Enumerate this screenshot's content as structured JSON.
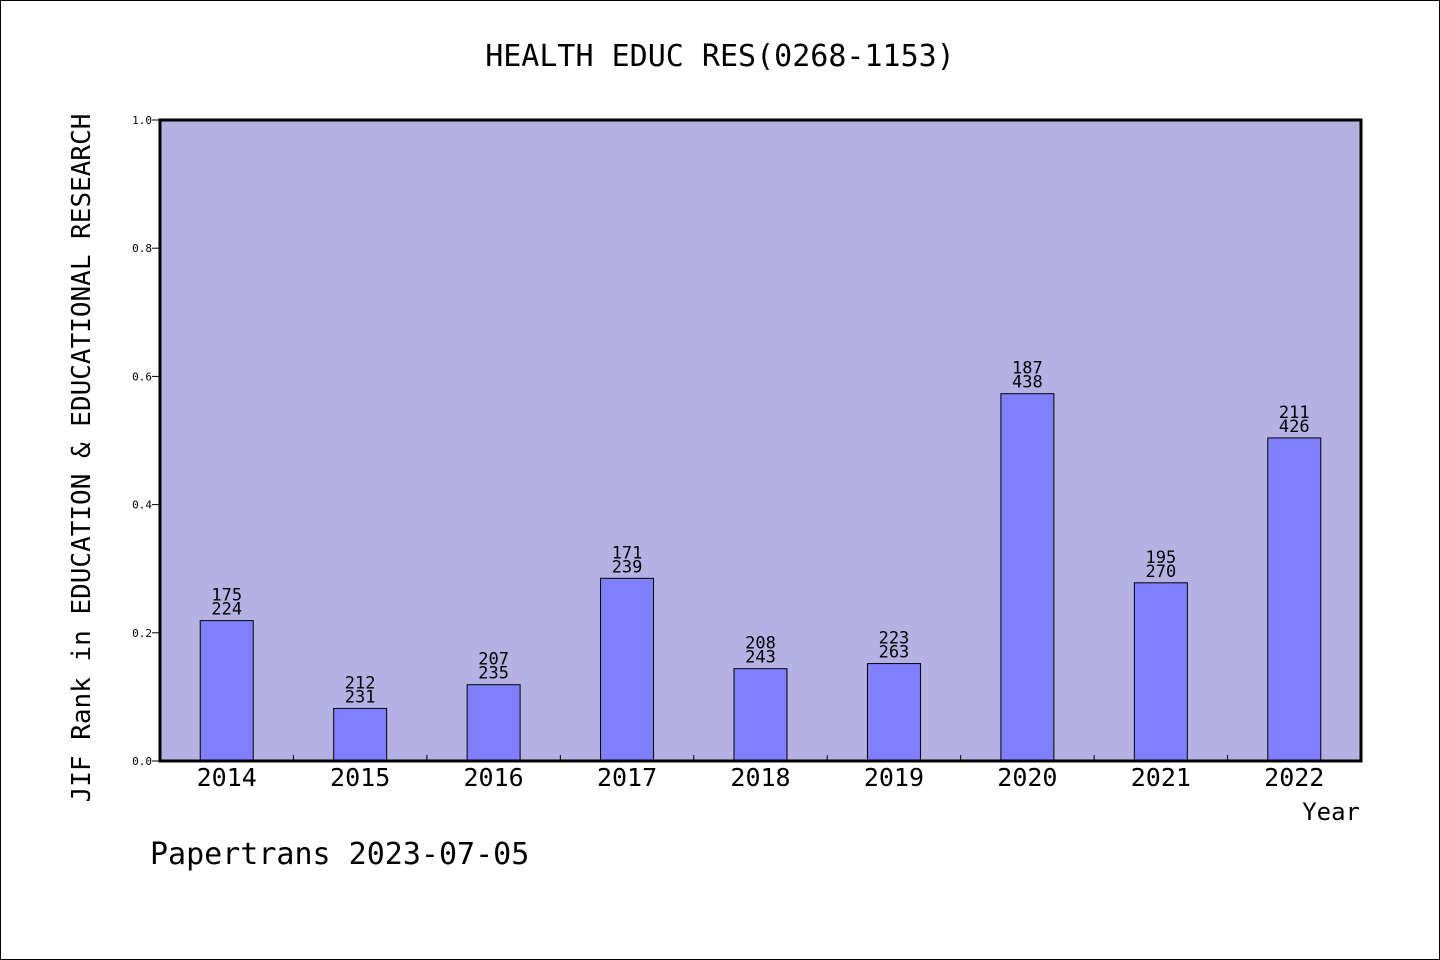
{
  "chart_data": {
    "type": "bar",
    "title": "HEALTH EDUC RES(0268-1153)",
    "xlabel": "Year",
    "ylabel": "JIF Rank in EDUCATION & EDUCATIONAL RESEARCH",
    "ylim": [
      0,
      1.0
    ],
    "yticks": [
      "0.0",
      "0.2",
      "0.4",
      "0.6",
      "0.8",
      "1.0"
    ],
    "grid": false,
    "categories": [
      "2014",
      "2015",
      "2016",
      "2017",
      "2018",
      "2019",
      "2020",
      "2021",
      "2022"
    ],
    "values": [
      0.219,
      0.082,
      0.119,
      0.285,
      0.144,
      0.152,
      0.573,
      0.278,
      0.504
    ],
    "rank": [
      "175",
      "212",
      "207",
      "171",
      "208",
      "223",
      "187",
      "195",
      "211"
    ],
    "total": [
      "224",
      "231",
      "235",
      "239",
      "243",
      "263",
      "438",
      "270",
      "426"
    ],
    "colors": {
      "plot_bg": "#b6b1e3",
      "bar": "#8080ff",
      "outline": "#000000"
    }
  },
  "footer": "Papertrans 2023-07-05"
}
